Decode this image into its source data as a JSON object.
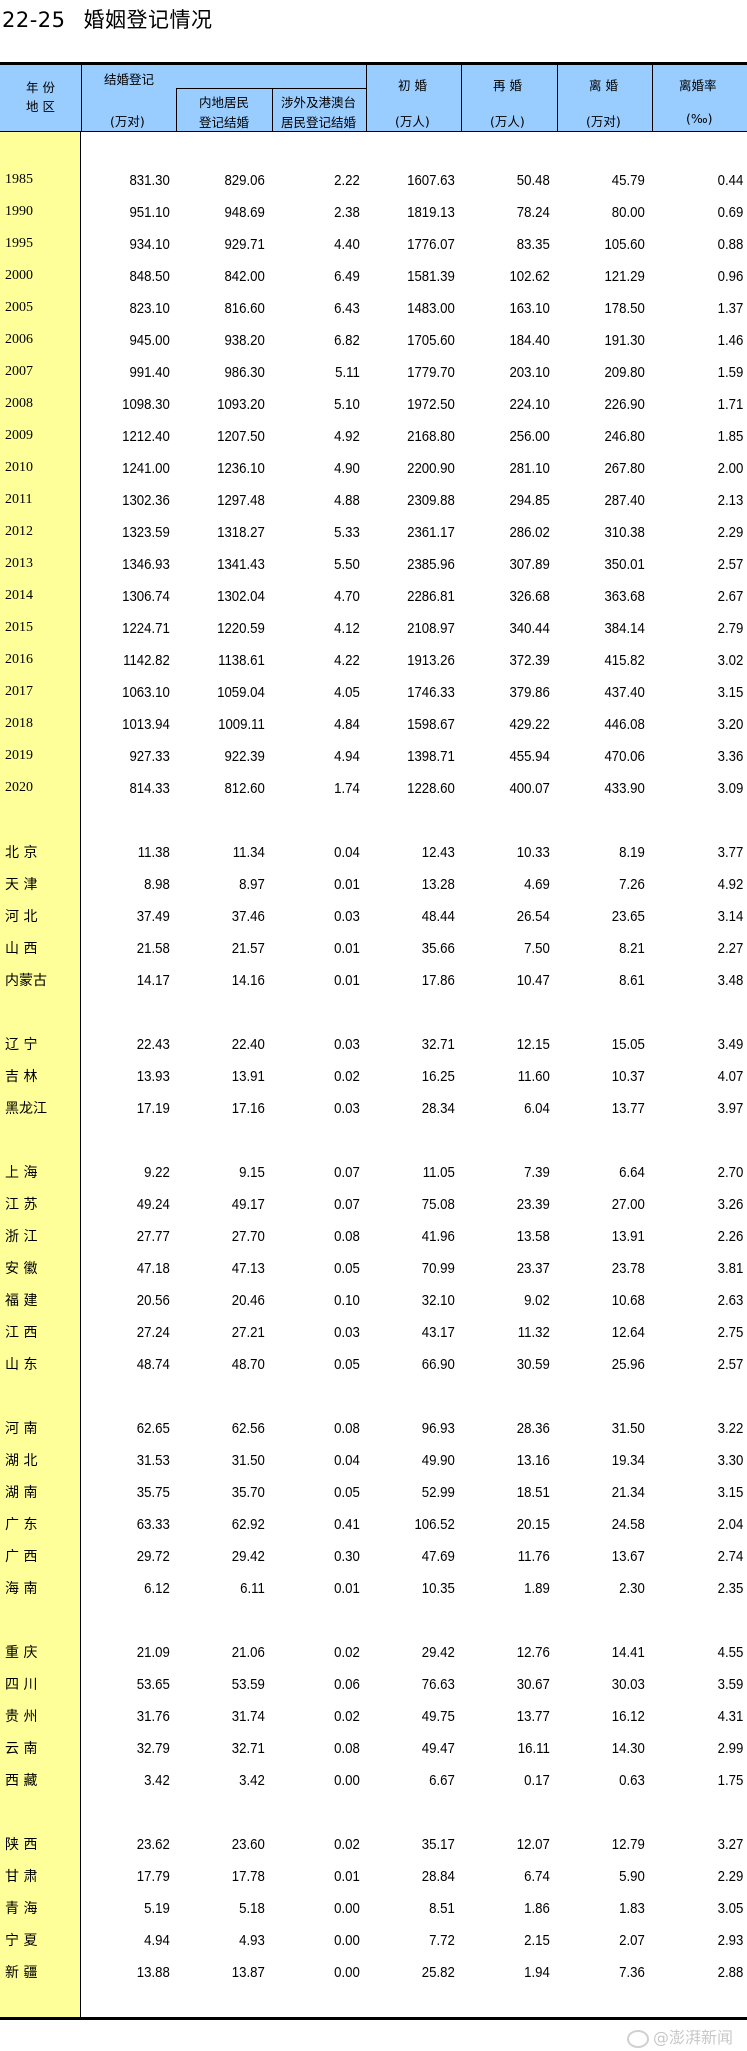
{
  "title": {
    "number": "22-25",
    "text": "婚姻登记情况"
  },
  "header": {
    "col0_line1": "年 份",
    "col0_line2": "地 区",
    "marriage": "结婚登记",
    "marriage_unit": "(万对)",
    "mainland_line1": "内地居民",
    "mainland_line2": "登记结婚",
    "foreign_line1": "涉外及港澳台",
    "foreign_line2": "居民登记结婚",
    "first": "初 婚",
    "first_unit": "(万人)",
    "remarry": "再 婚",
    "remarry_unit": "(万人)",
    "divorce": "离 婚",
    "divorce_unit": "(万对)",
    "rate": "离婚率",
    "rate_unit": "(‰)"
  },
  "colors": {
    "header_bg": "#99ccff",
    "label_col_bg": "#ffff99"
  },
  "years": [
    [
      "1985",
      "831.30",
      "829.06",
      "2.22",
      "1607.63",
      "50.48",
      "45.79",
      "0.44"
    ],
    [
      "1990",
      "951.10",
      "948.69",
      "2.38",
      "1819.13",
      "78.24",
      "80.00",
      "0.69"
    ],
    [
      "1995",
      "934.10",
      "929.71",
      "4.40",
      "1776.07",
      "83.35",
      "105.60",
      "0.88"
    ],
    [
      "2000",
      "848.50",
      "842.00",
      "6.49",
      "1581.39",
      "102.62",
      "121.29",
      "0.96"
    ],
    [
      "2005",
      "823.10",
      "816.60",
      "6.43",
      "1483.00",
      "163.10",
      "178.50",
      "1.37"
    ],
    [
      "2006",
      "945.00",
      "938.20",
      "6.82",
      "1705.60",
      "184.40",
      "191.30",
      "1.46"
    ],
    [
      "2007",
      "991.40",
      "986.30",
      "5.11",
      "1779.70",
      "203.10",
      "209.80",
      "1.59"
    ],
    [
      "2008",
      "1098.30",
      "1093.20",
      "5.10",
      "1972.50",
      "224.10",
      "226.90",
      "1.71"
    ],
    [
      "2009",
      "1212.40",
      "1207.50",
      "4.92",
      "2168.80",
      "256.00",
      "246.80",
      "1.85"
    ],
    [
      "2010",
      "1241.00",
      "1236.10",
      "4.90",
      "2200.90",
      "281.10",
      "267.80",
      "2.00"
    ],
    [
      "2011",
      "1302.36",
      "1297.48",
      "4.88",
      "2309.88",
      "294.85",
      "287.40",
      "2.13"
    ],
    [
      "2012",
      "1323.59",
      "1318.27",
      "5.33",
      "2361.17",
      "286.02",
      "310.38",
      "2.29"
    ],
    [
      "2013",
      "1346.93",
      "1341.43",
      "5.50",
      "2385.96",
      "307.89",
      "350.01",
      "2.57"
    ],
    [
      "2014",
      "1306.74",
      "1302.04",
      "4.70",
      "2286.81",
      "326.68",
      "363.68",
      "2.67"
    ],
    [
      "2015",
      "1224.71",
      "1220.59",
      "4.12",
      "2108.97",
      "340.44",
      "384.14",
      "2.79"
    ],
    [
      "2016",
      "1142.82",
      "1138.61",
      "4.22",
      "1913.26",
      "372.39",
      "415.82",
      "3.02"
    ],
    [
      "2017",
      "1063.10",
      "1059.04",
      "4.05",
      "1746.33",
      "379.86",
      "437.40",
      "3.15"
    ],
    [
      "2018",
      "1013.94",
      "1009.11",
      "4.84",
      "1598.67",
      "429.22",
      "446.08",
      "3.20"
    ],
    [
      "2019",
      "927.33",
      "922.39",
      "4.94",
      "1398.71",
      "455.94",
      "470.06",
      "3.36"
    ],
    [
      "2020",
      "814.33",
      "812.60",
      "1.74",
      "1228.60",
      "400.07",
      "433.90",
      "3.09"
    ]
  ],
  "region_groups": [
    [
      [
        "北 京",
        "11.38",
        "11.34",
        "0.04",
        "12.43",
        "10.33",
        "8.19",
        "3.77"
      ],
      [
        "天 津",
        "8.98",
        "8.97",
        "0.01",
        "13.28",
        "4.69",
        "7.26",
        "4.92"
      ],
      [
        "河 北",
        "37.49",
        "37.46",
        "0.03",
        "48.44",
        "26.54",
        "23.65",
        "3.14"
      ],
      [
        "山 西",
        "21.58",
        "21.57",
        "0.01",
        "35.66",
        "7.50",
        "8.21",
        "2.27"
      ],
      [
        "内蒙古",
        "14.17",
        "14.16",
        "0.01",
        "17.86",
        "10.47",
        "8.61",
        "3.48"
      ]
    ],
    [
      [
        "辽 宁",
        "22.43",
        "22.40",
        "0.03",
        "32.71",
        "12.15",
        "15.05",
        "3.49"
      ],
      [
        "吉 林",
        "13.93",
        "13.91",
        "0.02",
        "16.25",
        "11.60",
        "10.37",
        "4.07"
      ],
      [
        "黑龙江",
        "17.19",
        "17.16",
        "0.03",
        "28.34",
        "6.04",
        "13.77",
        "3.97"
      ]
    ],
    [
      [
        "上 海",
        "9.22",
        "9.15",
        "0.07",
        "11.05",
        "7.39",
        "6.64",
        "2.70"
      ],
      [
        "江 苏",
        "49.24",
        "49.17",
        "0.07",
        "75.08",
        "23.39",
        "27.00",
        "3.26"
      ],
      [
        "浙 江",
        "27.77",
        "27.70",
        "0.08",
        "41.96",
        "13.58",
        "13.91",
        "2.26"
      ],
      [
        "安 徽",
        "47.18",
        "47.13",
        "0.05",
        "70.99",
        "23.37",
        "23.78",
        "3.81"
      ],
      [
        "福 建",
        "20.56",
        "20.46",
        "0.10",
        "32.10",
        "9.02",
        "10.68",
        "2.63"
      ],
      [
        "江 西",
        "27.24",
        "27.21",
        "0.03",
        "43.17",
        "11.32",
        "12.64",
        "2.75"
      ],
      [
        "山 东",
        "48.74",
        "48.70",
        "0.05",
        "66.90",
        "30.59",
        "25.96",
        "2.57"
      ]
    ],
    [
      [
        "河 南",
        "62.65",
        "62.56",
        "0.08",
        "96.93",
        "28.36",
        "31.50",
        "3.22"
      ],
      [
        "湖 北",
        "31.53",
        "31.50",
        "0.04",
        "49.90",
        "13.16",
        "19.34",
        "3.30"
      ],
      [
        "湖 南",
        "35.75",
        "35.70",
        "0.05",
        "52.99",
        "18.51",
        "21.34",
        "3.15"
      ],
      [
        "广 东",
        "63.33",
        "62.92",
        "0.41",
        "106.52",
        "20.15",
        "24.58",
        "2.04"
      ],
      [
        "广 西",
        "29.72",
        "29.42",
        "0.30",
        "47.69",
        "11.76",
        "13.67",
        "2.74"
      ],
      [
        "海 南",
        "6.12",
        "6.11",
        "0.01",
        "10.35",
        "1.89",
        "2.30",
        "2.35"
      ]
    ],
    [
      [
        "重 庆",
        "21.09",
        "21.06",
        "0.02",
        "29.42",
        "12.76",
        "14.41",
        "4.55"
      ],
      [
        "四 川",
        "53.65",
        "53.59",
        "0.06",
        "76.63",
        "30.67",
        "30.03",
        "3.59"
      ],
      [
        "贵 州",
        "31.76",
        "31.74",
        "0.02",
        "49.75",
        "13.77",
        "16.12",
        "4.31"
      ],
      [
        "云 南",
        "32.79",
        "32.71",
        "0.08",
        "49.47",
        "16.11",
        "14.30",
        "2.99"
      ],
      [
        "西 藏",
        "3.42",
        "3.42",
        "0.00",
        "6.67",
        "0.17",
        "0.63",
        "1.75"
      ]
    ],
    [
      [
        "陕 西",
        "23.62",
        "23.60",
        "0.02",
        "35.17",
        "12.07",
        "12.79",
        "3.27"
      ],
      [
        "甘 肃",
        "17.79",
        "17.78",
        "0.01",
        "28.84",
        "6.74",
        "5.90",
        "2.29"
      ],
      [
        "青 海",
        "5.19",
        "5.18",
        "0.00",
        "8.51",
        "1.86",
        "1.83",
        "3.05"
      ],
      [
        "宁 夏",
        "4.94",
        "4.93",
        "0.00",
        "7.72",
        "2.15",
        "2.07",
        "2.93"
      ],
      [
        "新 疆",
        "13.88",
        "13.87",
        "0.00",
        "25.82",
        "1.94",
        "7.36",
        "2.88"
      ]
    ]
  ],
  "watermark": "@澎湃新闻"
}
